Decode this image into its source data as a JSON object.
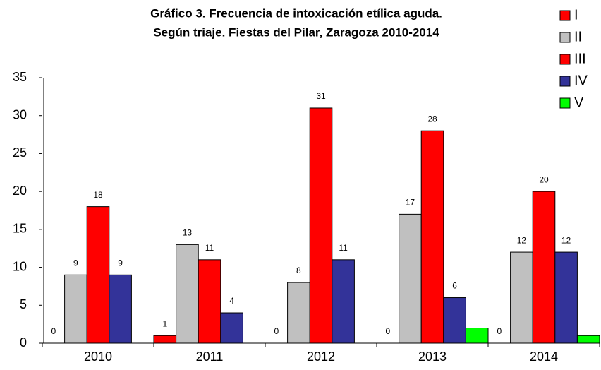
{
  "chart_data": {
    "type": "bar",
    "title": [
      "Gráfico 3. Frecuencia de intoxicación etílica aguda.",
      "Según triaje. Fiestas del Pilar, Zaragoza 2010-2014"
    ],
    "categories": [
      "2010",
      "2011",
      "2012",
      "2013",
      "2014"
    ],
    "series": [
      {
        "name": "I",
        "color": "#ff0000",
        "values": [
          0,
          1,
          0,
          0,
          0
        ]
      },
      {
        "name": "II",
        "color": "#c0c0c0",
        "values": [
          9,
          13,
          8,
          17,
          12
        ]
      },
      {
        "name": "III",
        "color": "#ff0000",
        "values": [
          18,
          11,
          31,
          28,
          20
        ]
      },
      {
        "name": "IV",
        "color": "#333399",
        "values": [
          9,
          4,
          11,
          6,
          12
        ]
      },
      {
        "name": "V",
        "color": "#00ff00",
        "values": [
          0,
          0,
          0,
          2,
          1
        ],
        "data_labels": false
      }
    ],
    "ylim": [
      0,
      35
    ],
    "yticks": [
      0,
      5,
      10,
      15,
      20,
      25,
      30,
      35
    ],
    "grid": false,
    "data_labels": true,
    "legend": "top-right"
  }
}
